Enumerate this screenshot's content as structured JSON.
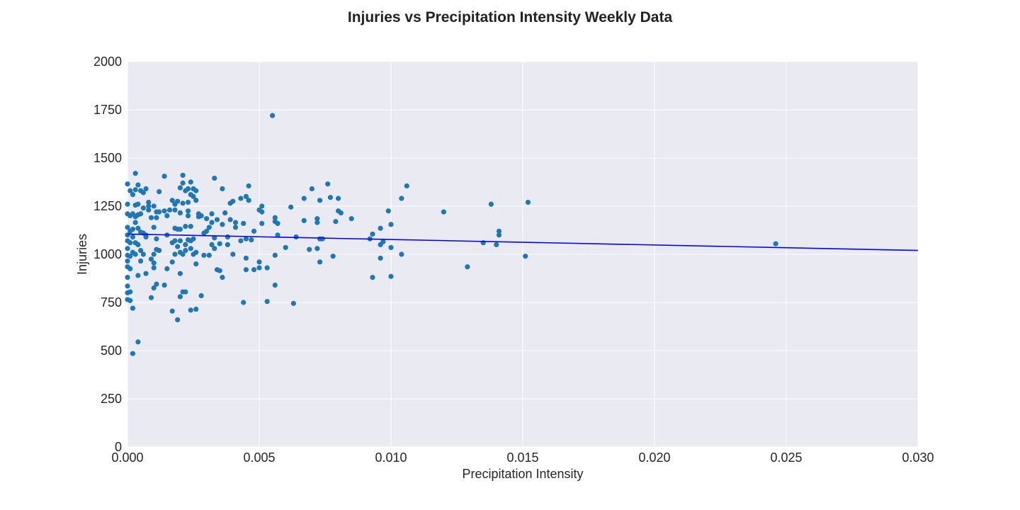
{
  "chart_data": {
    "type": "scatter",
    "title": "Injuries vs Precipitation Intensity Weekly Data",
    "xlabel": "Precipitation Intensity",
    "ylabel": "Injuries",
    "xlim": [
      0,
      0.03
    ],
    "ylim": [
      0,
      2000
    ],
    "x_ticks": [
      "0.000",
      "0.005",
      "0.010",
      "0.015",
      "0.020",
      "0.025",
      "0.030"
    ],
    "x_tick_values": [
      0,
      0.005,
      0.01,
      0.015,
      0.02,
      0.025,
      0.03
    ],
    "y_ticks": [
      "0",
      "250",
      "500",
      "750",
      "1000",
      "1250",
      "1500",
      "1750",
      "2000"
    ],
    "y_tick_values": [
      0,
      250,
      500,
      750,
      1000,
      1250,
      1500,
      1750,
      2000
    ],
    "grid": true,
    "legend": "none",
    "colors": {
      "points": "#1f77b4",
      "trend": "#0000ff",
      "plot_background": "#eaeaf2",
      "grid": "#ffffff"
    },
    "trend_line": {
      "x": [
        0,
        0.03
      ],
      "y": [
        1105,
        1020
      ]
    },
    "series": [
      {
        "points": [
          [
            0,
            1365
          ],
          [
            0,
            1260
          ],
          [
            0,
            1210
          ],
          [
            0,
            1140
          ],
          [
            0,
            1100
          ],
          [
            0,
            1070
          ],
          [
            0,
            1030
          ],
          [
            0,
            995
          ],
          [
            0,
            965
          ],
          [
            0,
            935
          ],
          [
            0,
            880
          ],
          [
            0,
            835
          ],
          [
            0,
            800
          ],
          [
            0,
            765
          ],
          [
            0.0001,
            1330
          ],
          [
            0.0001,
            1200
          ],
          [
            0.0001,
            1120
          ],
          [
            0.0001,
            1060
          ],
          [
            0.0001,
            990
          ],
          [
            0.0001,
            925
          ],
          [
            0.0001,
            805
          ],
          [
            0.0001,
            760
          ],
          [
            0.0002,
            1310
          ],
          [
            0.0002,
            1210
          ],
          [
            0.0002,
            1130
          ],
          [
            0.0002,
            1090
          ],
          [
            0.0002,
            1010
          ],
          [
            0.0002,
            720
          ],
          [
            0.0002,
            485
          ],
          [
            0.0003,
            1420
          ],
          [
            0.0003,
            1335
          ],
          [
            0.0003,
            1255
          ],
          [
            0.0003,
            1195
          ],
          [
            0.0003,
            1165
          ],
          [
            0.0003,
            1060
          ],
          [
            0.0003,
            1000
          ],
          [
            0.0004,
            1360
          ],
          [
            0.0004,
            1260
          ],
          [
            0.0004,
            1205
          ],
          [
            0.0004,
            1135
          ],
          [
            0.0004,
            1050
          ],
          [
            0.0004,
            890
          ],
          [
            0.0004,
            545
          ],
          [
            0.0005,
            1330
          ],
          [
            0.0005,
            1210
          ],
          [
            0.0005,
            1115
          ],
          [
            0.0005,
            1020
          ],
          [
            0.0005,
            965
          ],
          [
            0.0006,
            1320
          ],
          [
            0.0006,
            1240
          ],
          [
            0.0006,
            1110
          ],
          [
            0.0006,
            1000
          ],
          [
            0.0007,
            1340
          ],
          [
            0.0007,
            1100
          ],
          [
            0.0007,
            1090
          ],
          [
            0.0007,
            900
          ],
          [
            0.0008,
            1270
          ],
          [
            0.0008,
            1250
          ],
          [
            0.0008,
            1230
          ],
          [
            0.0009,
            1190
          ],
          [
            0.0009,
            975
          ],
          [
            0.0009,
            775
          ],
          [
            0.001,
            1250
          ],
          [
            0.001,
            1140
          ],
          [
            0.001,
            1000
          ],
          [
            0.001,
            955
          ],
          [
            0.001,
            930
          ],
          [
            0.001,
            825
          ],
          [
            0.0011,
            1220
          ],
          [
            0.0011,
            1190
          ],
          [
            0.0011,
            1080
          ],
          [
            0.0011,
            1025
          ],
          [
            0.0011,
            845
          ],
          [
            0.0012,
            1325
          ],
          [
            0.0012,
            1220
          ],
          [
            0.0012,
            1020
          ],
          [
            0.0014,
            1405
          ],
          [
            0.0014,
            1225
          ],
          [
            0.0014,
            840
          ],
          [
            0.0015,
            1200
          ],
          [
            0.0015,
            1100
          ],
          [
            0.0015,
            925
          ],
          [
            0.0016,
            1230
          ],
          [
            0.0017,
            1280
          ],
          [
            0.0017,
            1060
          ],
          [
            0.0017,
            960
          ],
          [
            0.0017,
            705
          ],
          [
            0.0018,
            1260
          ],
          [
            0.0018,
            1230
          ],
          [
            0.0018,
            1135
          ],
          [
            0.0018,
            1070
          ],
          [
            0.0018,
            1000
          ],
          [
            0.0019,
            1275
          ],
          [
            0.0019,
            1130
          ],
          [
            0.0019,
            1040
          ],
          [
            0.0019,
            660
          ],
          [
            0.002,
            1345
          ],
          [
            0.002,
            1215
          ],
          [
            0.002,
            1130
          ],
          [
            0.002,
            1070
          ],
          [
            0.002,
            1010
          ],
          [
            0.002,
            900
          ],
          [
            0.002,
            780
          ],
          [
            0.0021,
            1410
          ],
          [
            0.0021,
            1370
          ],
          [
            0.0021,
            1265
          ],
          [
            0.0021,
            1000
          ],
          [
            0.0021,
            805
          ],
          [
            0.0022,
            1330
          ],
          [
            0.0022,
            1145
          ],
          [
            0.0022,
            1050
          ],
          [
            0.0022,
            1020
          ],
          [
            0.0022,
            805
          ],
          [
            0.0023,
            1340
          ],
          [
            0.0023,
            1270
          ],
          [
            0.0023,
            1225
          ],
          [
            0.0023,
            1200
          ],
          [
            0.0023,
            1075
          ],
          [
            0.0024,
            1375
          ],
          [
            0.0024,
            1310
          ],
          [
            0.0024,
            1145
          ],
          [
            0.0024,
            1070
          ],
          [
            0.0024,
            1030
          ],
          [
            0.0024,
            710
          ],
          [
            0.0025,
            1340
          ],
          [
            0.0025,
            1300
          ],
          [
            0.0025,
            1080
          ],
          [
            0.0025,
            1000
          ],
          [
            0.0026,
            1330
          ],
          [
            0.0026,
            1280
          ],
          [
            0.0026,
            1010
          ],
          [
            0.0026,
            950
          ],
          [
            0.0026,
            715
          ],
          [
            0.0027,
            1210
          ],
          [
            0.0027,
            1195
          ],
          [
            0.0028,
            1200
          ],
          [
            0.0028,
            785
          ],
          [
            0.0029,
            1110
          ],
          [
            0.0029,
            995
          ],
          [
            0.003,
            1120
          ],
          [
            0.003,
            1185
          ],
          [
            0.0031,
            1140
          ],
          [
            0.0031,
            995
          ],
          [
            0.0032,
            1210
          ],
          [
            0.0032,
            1165
          ],
          [
            0.0032,
            1050
          ],
          [
            0.0033,
            1395
          ],
          [
            0.0033,
            1085
          ],
          [
            0.0033,
            1030
          ],
          [
            0.0034,
            1180
          ],
          [
            0.0034,
            920
          ],
          [
            0.0035,
            1055
          ],
          [
            0.0035,
            915
          ],
          [
            0.0036,
            1340
          ],
          [
            0.0036,
            1155
          ],
          [
            0.0036,
            880
          ],
          [
            0.0037,
            1215
          ],
          [
            0.0038,
            1090
          ],
          [
            0.0038,
            1050
          ],
          [
            0.0039,
            1265
          ],
          [
            0.0039,
            1180
          ],
          [
            0.004,
            1275
          ],
          [
            0.004,
            1000
          ],
          [
            0.0041,
            1165
          ],
          [
            0.0041,
            1140
          ],
          [
            0.0043,
            1290
          ],
          [
            0.0043,
            1070
          ],
          [
            0.0044,
            1160
          ],
          [
            0.0044,
            750
          ],
          [
            0.0045,
            1300
          ],
          [
            0.0045,
            1080
          ],
          [
            0.0045,
            980
          ],
          [
            0.0045,
            920
          ],
          [
            0.0046,
            1355
          ],
          [
            0.0046,
            1280
          ],
          [
            0.0047,
            1075
          ],
          [
            0.0048,
            1120
          ],
          [
            0.0048,
            920
          ],
          [
            0.005,
            1230
          ],
          [
            0.005,
            960
          ],
          [
            0.005,
            930
          ],
          [
            0.0051,
            1250
          ],
          [
            0.0051,
            1220
          ],
          [
            0.0051,
            1160
          ],
          [
            0.0053,
            755
          ],
          [
            0.0053,
            930
          ],
          [
            0.0055,
            1720
          ],
          [
            0.0056,
            1190
          ],
          [
            0.0056,
            1170
          ],
          [
            0.0056,
            995
          ],
          [
            0.0056,
            840
          ],
          [
            0.0057,
            1160
          ],
          [
            0.0057,
            1100
          ],
          [
            0.006,
            1035
          ],
          [
            0.0062,
            1245
          ],
          [
            0.0063,
            745
          ],
          [
            0.0064,
            1090
          ],
          [
            0.0067,
            1290
          ],
          [
            0.0067,
            1175
          ],
          [
            0.0069,
            1025
          ],
          [
            0.007,
            1340
          ],
          [
            0.0072,
            1185
          ],
          [
            0.0072,
            1165
          ],
          [
            0.0072,
            1030
          ],
          [
            0.0073,
            1280
          ],
          [
            0.0073,
            1080
          ],
          [
            0.0073,
            960
          ],
          [
            0.0074,
            1080
          ],
          [
            0.0076,
            1365
          ],
          [
            0.0077,
            1295
          ],
          [
            0.0078,
            990
          ],
          [
            0.0079,
            1170
          ],
          [
            0.008,
            1290
          ],
          [
            0.008,
            1225
          ],
          [
            0.0081,
            1215
          ],
          [
            0.0085,
            1185
          ],
          [
            0.0092,
            1080
          ],
          [
            0.0093,
            1105
          ],
          [
            0.0093,
            880
          ],
          [
            0.0096,
            1135
          ],
          [
            0.0096,
            1050
          ],
          [
            0.0096,
            980
          ],
          [
            0.0097,
            1065
          ],
          [
            0.0099,
            1225
          ],
          [
            0.01,
            1155
          ],
          [
            0.01,
            1035
          ],
          [
            0.01,
            885
          ],
          [
            0.0104,
            1290
          ],
          [
            0.0104,
            1000
          ],
          [
            0.0106,
            1355
          ],
          [
            0.012,
            1220
          ],
          [
            0.0129,
            935
          ],
          [
            0.0135,
            1060
          ],
          [
            0.0138,
            1260
          ],
          [
            0.014,
            1050
          ],
          [
            0.0141,
            1120
          ],
          [
            0.0141,
            1100
          ],
          [
            0.0151,
            990
          ],
          [
            0.0152,
            1270
          ],
          [
            0.0246,
            1055
          ]
        ]
      }
    ]
  }
}
